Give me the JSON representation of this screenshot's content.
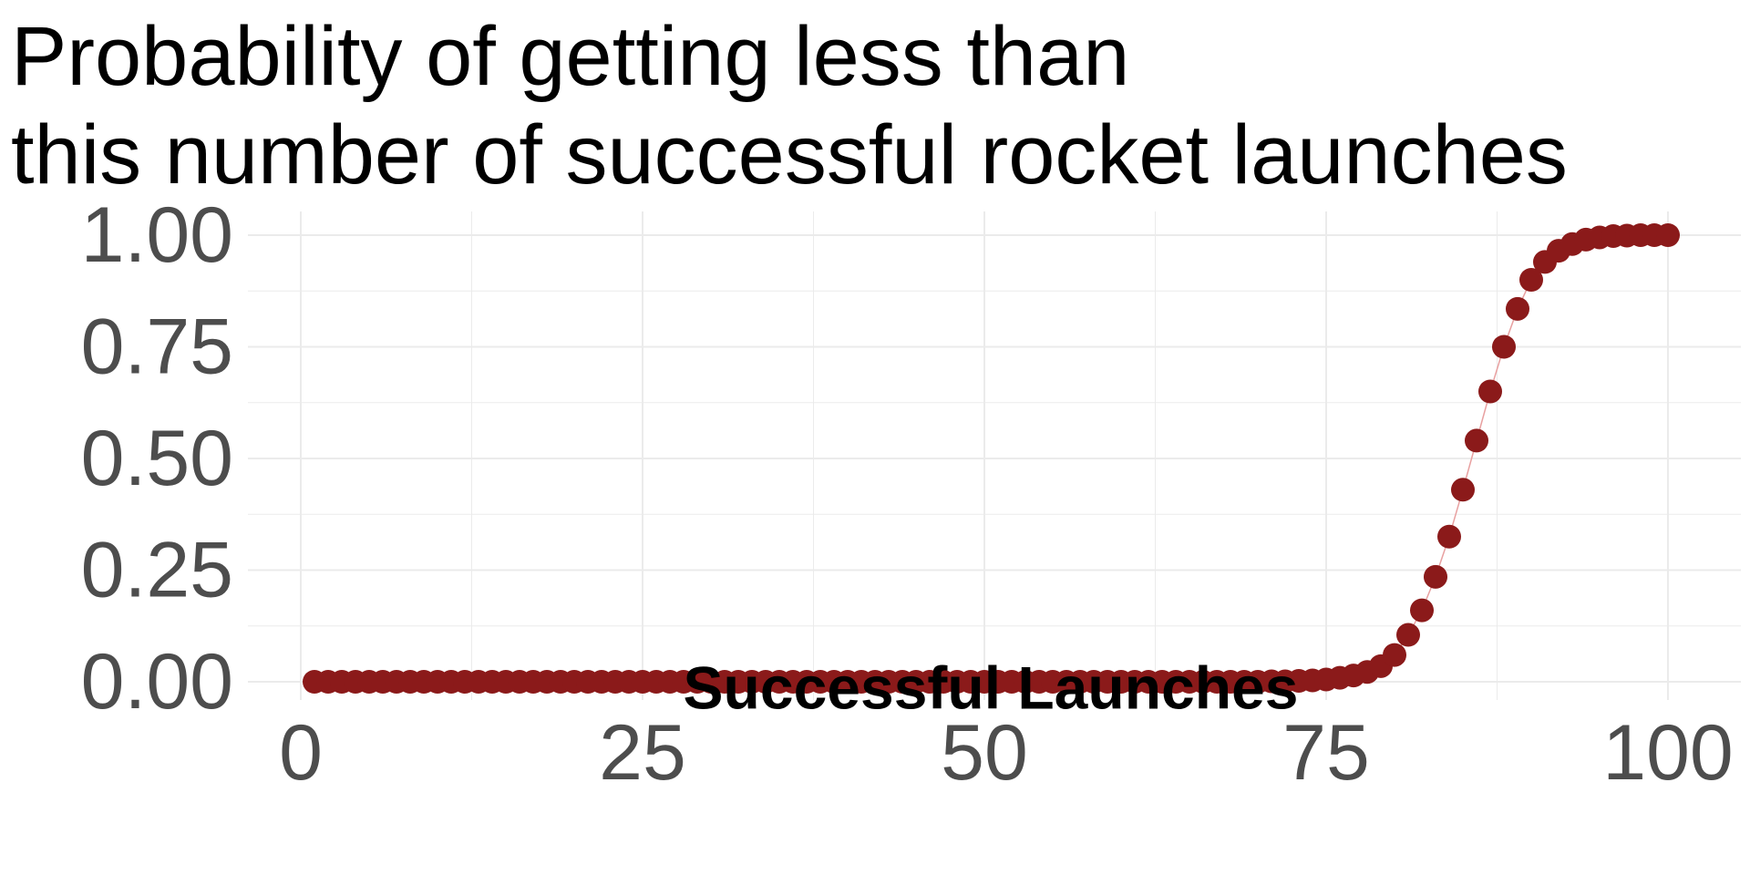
{
  "chart_data": {
    "type": "scatter",
    "title": "Probability of getting less than this number of successful rocket launches",
    "title_lines": [
      "Probability of getting less than",
      "this number of successful rocket launches"
    ],
    "xlabel": "Successful Launches",
    "ylabel": "",
    "xlim": [
      0,
      100
    ],
    "ylim": [
      0,
      1
    ],
    "x_ticks": [
      0,
      25,
      50,
      75,
      100
    ],
    "x_tick_labels": [
      "0",
      "25",
      "50",
      "75",
      "100"
    ],
    "y_ticks": [
      0,
      0.25,
      0.5,
      0.75,
      1
    ],
    "y_tick_labels": [
      "0.00",
      "0.25",
      "0.50",
      "0.75",
      "1.00"
    ],
    "grid": true,
    "legend": "none",
    "connected_by_line": true,
    "point_color": "#8b1a1a",
    "line_color": "#e8a0a0",
    "grid_color": "#ebebeb",
    "series": [
      {
        "x": [
          1,
          2,
          3,
          4,
          5,
          6,
          7,
          8,
          9,
          10,
          11,
          12,
          13,
          14,
          15,
          16,
          17,
          18,
          19,
          20,
          21,
          22,
          23,
          24,
          25,
          26,
          27,
          28,
          29,
          30,
          31,
          32,
          33,
          34,
          35,
          36,
          37,
          38,
          39,
          40,
          41,
          42,
          43,
          44,
          45,
          46,
          47,
          48,
          49,
          50,
          51,
          52,
          53,
          54,
          55,
          56,
          57,
          58,
          59,
          60,
          61,
          62,
          63,
          64,
          65,
          66,
          67,
          68,
          69,
          70,
          71,
          72,
          73,
          74,
          75,
          76,
          77,
          78,
          79,
          80,
          81,
          82,
          83,
          84,
          85,
          86,
          87,
          88,
          89,
          90,
          91,
          92,
          93,
          94,
          95,
          96,
          97,
          98,
          99,
          100
        ],
        "y": [
          0,
          0,
          0,
          0,
          0,
          0,
          0,
          0,
          0,
          0,
          0,
          0,
          0,
          0,
          0,
          0,
          0,
          0,
          0,
          0,
          0,
          0,
          0,
          0,
          0,
          0,
          0,
          0,
          0,
          0,
          0,
          0,
          0,
          0,
          0,
          0,
          0,
          0,
          0,
          0,
          0,
          0,
          0,
          0,
          0,
          0,
          0,
          0,
          0,
          0,
          0,
          0,
          0,
          0,
          0,
          0,
          0,
          0,
          0,
          0,
          0,
          0,
          0,
          0,
          0,
          0,
          0,
          0,
          0,
          0,
          0.001,
          0.001,
          0.002,
          0.003,
          0.005,
          0.009,
          0.014,
          0.022,
          0.035,
          0.06,
          0.105,
          0.16,
          0.235,
          0.325,
          0.43,
          0.54,
          0.65,
          0.75,
          0.835,
          0.9,
          0.94,
          0.965,
          0.98,
          0.99,
          0.995,
          0.998,
          0.999,
          1,
          1,
          1
        ]
      }
    ]
  }
}
